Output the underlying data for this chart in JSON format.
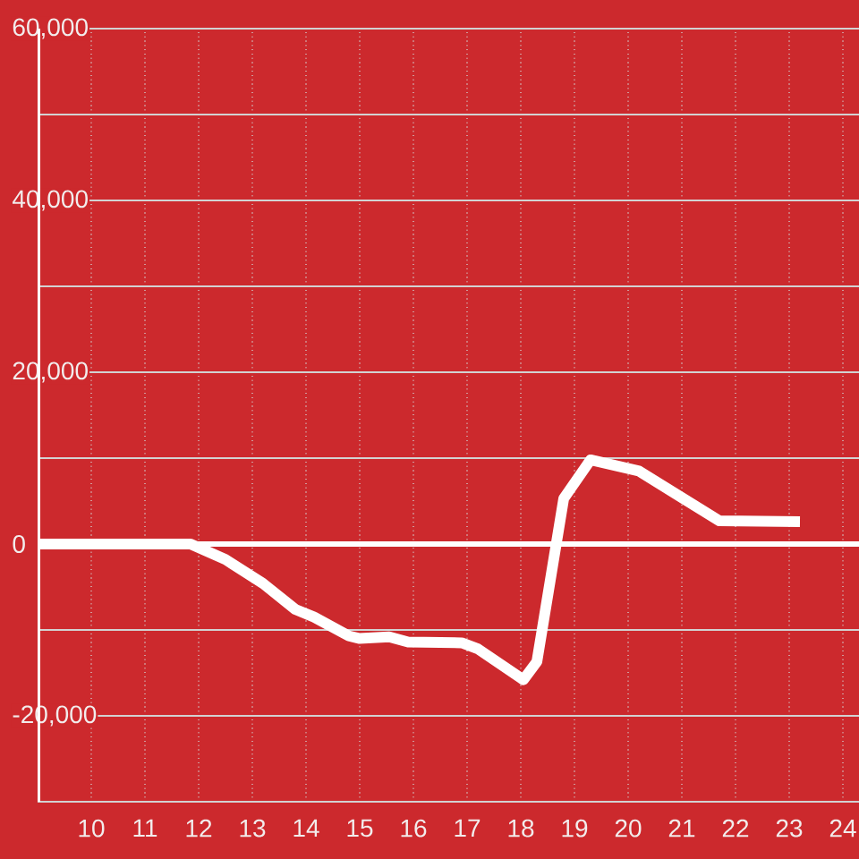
{
  "chart_data": {
    "type": "line",
    "x": [
      9,
      11.85,
      12.5,
      13.2,
      13.8,
      14.15,
      14.8,
      15.0,
      15.55,
      15.9,
      16.9,
      17.2,
      18.05,
      18.3,
      18.8,
      19.3,
      20.2,
      21.7,
      23.2
    ],
    "series": [
      {
        "color": "#ffffff",
        "values": [
          0,
          0,
          -1800,
          -4600,
          -7600,
          -8500,
          -10700,
          -11000,
          -10800,
          -11400,
          -11500,
          -12200,
          -15800,
          -13700,
          5300,
          9800,
          8500,
          2700,
          2600
        ]
      }
    ],
    "xlim": [
      9,
      24.3
    ],
    "ylim": [
      -30000,
      60000
    ],
    "xticks": [
      10,
      11,
      12,
      13,
      14,
      15,
      16,
      17,
      18,
      19,
      20,
      21,
      22,
      23,
      24
    ],
    "yticks": [
      {
        "value": -30000,
        "label": null
      },
      {
        "value": -20000,
        "label": "-20,000"
      },
      {
        "value": -10000,
        "label": null
      },
      {
        "value": 0,
        "label": "0"
      },
      {
        "value": 10000,
        "label": null
      },
      {
        "value": 20000,
        "label": "20,000"
      },
      {
        "value": 30000,
        "label": null
      },
      {
        "value": 40000,
        "label": "40,000"
      },
      {
        "value": 50000,
        "label": null
      },
      {
        "value": 60000,
        "label": "60,000"
      }
    ],
    "grid": true,
    "line_style": "solid",
    "ref_lines": [
      {
        "axis": "y",
        "value": 0,
        "color": "#ffffff"
      }
    ]
  }
}
